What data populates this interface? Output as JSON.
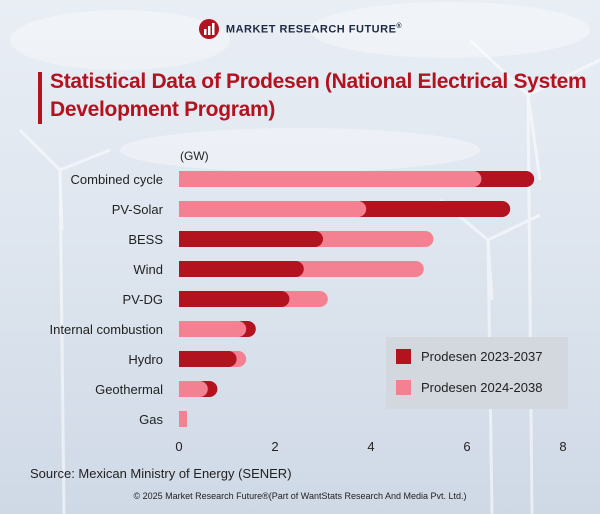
{
  "brand": {
    "name": "MARKET RESEARCH FUTURE",
    "reg": "®"
  },
  "title": "Statistical Data of Prodesen (National Electrical System Development Program)",
  "source": "Source: Mexican Ministry of Energy (SENER)",
  "copyright": "© 2025 Market Research Future®(Part of WantStats Research And Media Pvt. Ltd.)",
  "colors": {
    "series1": "#b3121f",
    "series2": "#f38191",
    "accent": "#b3121f"
  },
  "chart_data": {
    "type": "bar",
    "orientation": "horizontal",
    "title": "Statistical Data of Prodesen (National Electrical System Development Program)",
    "unit_label": "(GW)",
    "categories": [
      "Combined cycle",
      "PV-Solar",
      "BESS",
      "Wind",
      "PV-DG",
      "Internal combustion",
      "Hydro",
      "Geothermal",
      "Gas"
    ],
    "series": [
      {
        "name": "Prodesen 2023-2037",
        "values": [
          7.4,
          6.9,
          3.0,
          2.6,
          2.3,
          1.6,
          1.2,
          0.8,
          0.1
        ]
      },
      {
        "name": "Prodesen 2024-2038",
        "values": [
          6.3,
          3.9,
          5.3,
          5.1,
          3.1,
          1.4,
          1.4,
          0.6,
          0.15
        ]
      }
    ],
    "xlim": [
      0,
      8
    ],
    "xticks": [
      0,
      2,
      4,
      6,
      8
    ],
    "legend_position": "bottom-right",
    "grid": false
  }
}
